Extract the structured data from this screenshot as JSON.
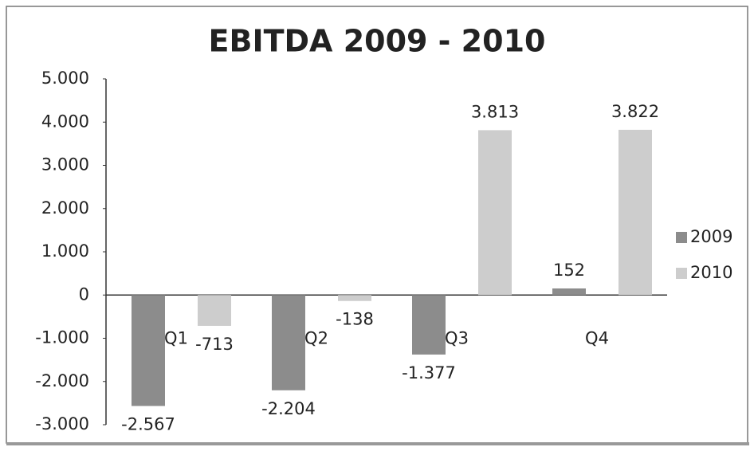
{
  "chart_data": {
    "type": "bar",
    "title": "EBITDA 2009 - 2010",
    "categories": [
      "Q1",
      "Q2",
      "Q3",
      "Q4"
    ],
    "series": [
      {
        "name": "2009",
        "color": "#8c8c8c",
        "values": [
          -2567,
          -2204,
          -1377,
          152
        ],
        "value_labels": [
          "-2.567",
          "-2.204",
          "-1.377",
          "152"
        ]
      },
      {
        "name": "2010",
        "color": "#cdcdcd",
        "values": [
          -713,
          -138,
          3813,
          3822
        ],
        "value_labels": [
          "-713",
          "-138",
          "3.813",
          "3.822"
        ]
      }
    ],
    "ylim": [
      -3000,
      5000
    ],
    "yticks": [
      {
        "value": -3000,
        "label": "-3.000"
      },
      {
        "value": -2000,
        "label": "-2.000"
      },
      {
        "value": -1000,
        "label": "-1.000"
      },
      0,
      {
        "value": 1000,
        "label": "1.000"
      },
      {
        "value": 2000,
        "label": "2.000"
      },
      {
        "value": 3000,
        "label": "3.000"
      },
      {
        "value": 4000,
        "label": "4.000"
      },
      {
        "value": 5000,
        "label": "5.000"
      }
    ],
    "legend": "right"
  }
}
